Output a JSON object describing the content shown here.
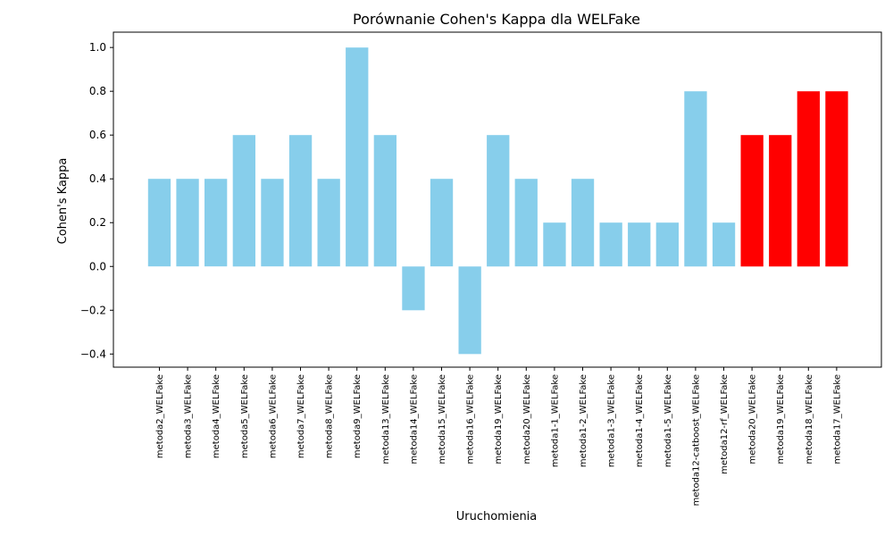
{
  "chart_data": {
    "type": "bar",
    "title": "Porównanie Cohen's Kappa dla WELFake",
    "xlabel": "Uruchomienia",
    "ylabel": "Cohen's Kappa",
    "ylim": [
      -0.46,
      1.07
    ],
    "yticks": [
      -0.4,
      -0.2,
      0.0,
      0.2,
      0.4,
      0.6,
      0.8,
      1.0
    ],
    "ytick_labels": [
      "−0.4",
      "−0.2",
      "0.0",
      "0.2",
      "0.4",
      "0.6",
      "0.8",
      "1.0"
    ],
    "grid": false,
    "categories": [
      "metoda2_WELFake",
      "metoda3_WELFake",
      "metoda4_WELFake",
      "metoda5_WELFake",
      "metoda6_WELFake",
      "metoda7_WELFake",
      "metoda8_WELFake",
      "metoda9_WELFake",
      "metoda13_WELFake",
      "metoda14_WELFake",
      "metoda15_WELFake",
      "metoda16_WELFake",
      "metoda19_WELFake",
      "metoda20_WELFake",
      "metoda1-1_WELFake",
      "metoda1-2_WELFake",
      "metoda1-3_WELFake",
      "metoda1-4_WELFake",
      "metoda1-5_WELFake",
      "metoda12-catboost_WELFake",
      "metoda12-rf_WELFake",
      "metoda20_WELFake",
      "metoda19_WELFake",
      "metoda18_WELFake",
      "metoda17_WELFake"
    ],
    "values": [
      0.4,
      0.4,
      0.4,
      0.6,
      0.4,
      0.6,
      0.4,
      1.0,
      0.6,
      -0.2,
      0.4,
      -0.4,
      0.6,
      0.4,
      0.2,
      0.4,
      0.2,
      0.2,
      0.2,
      0.8,
      0.2,
      0.6,
      0.6,
      0.8,
      0.8
    ],
    "colors": {
      "default": "#87ceeb",
      "highlight": "#ff0000"
    },
    "highlight_indices": [
      21,
      22,
      23,
      24
    ]
  }
}
